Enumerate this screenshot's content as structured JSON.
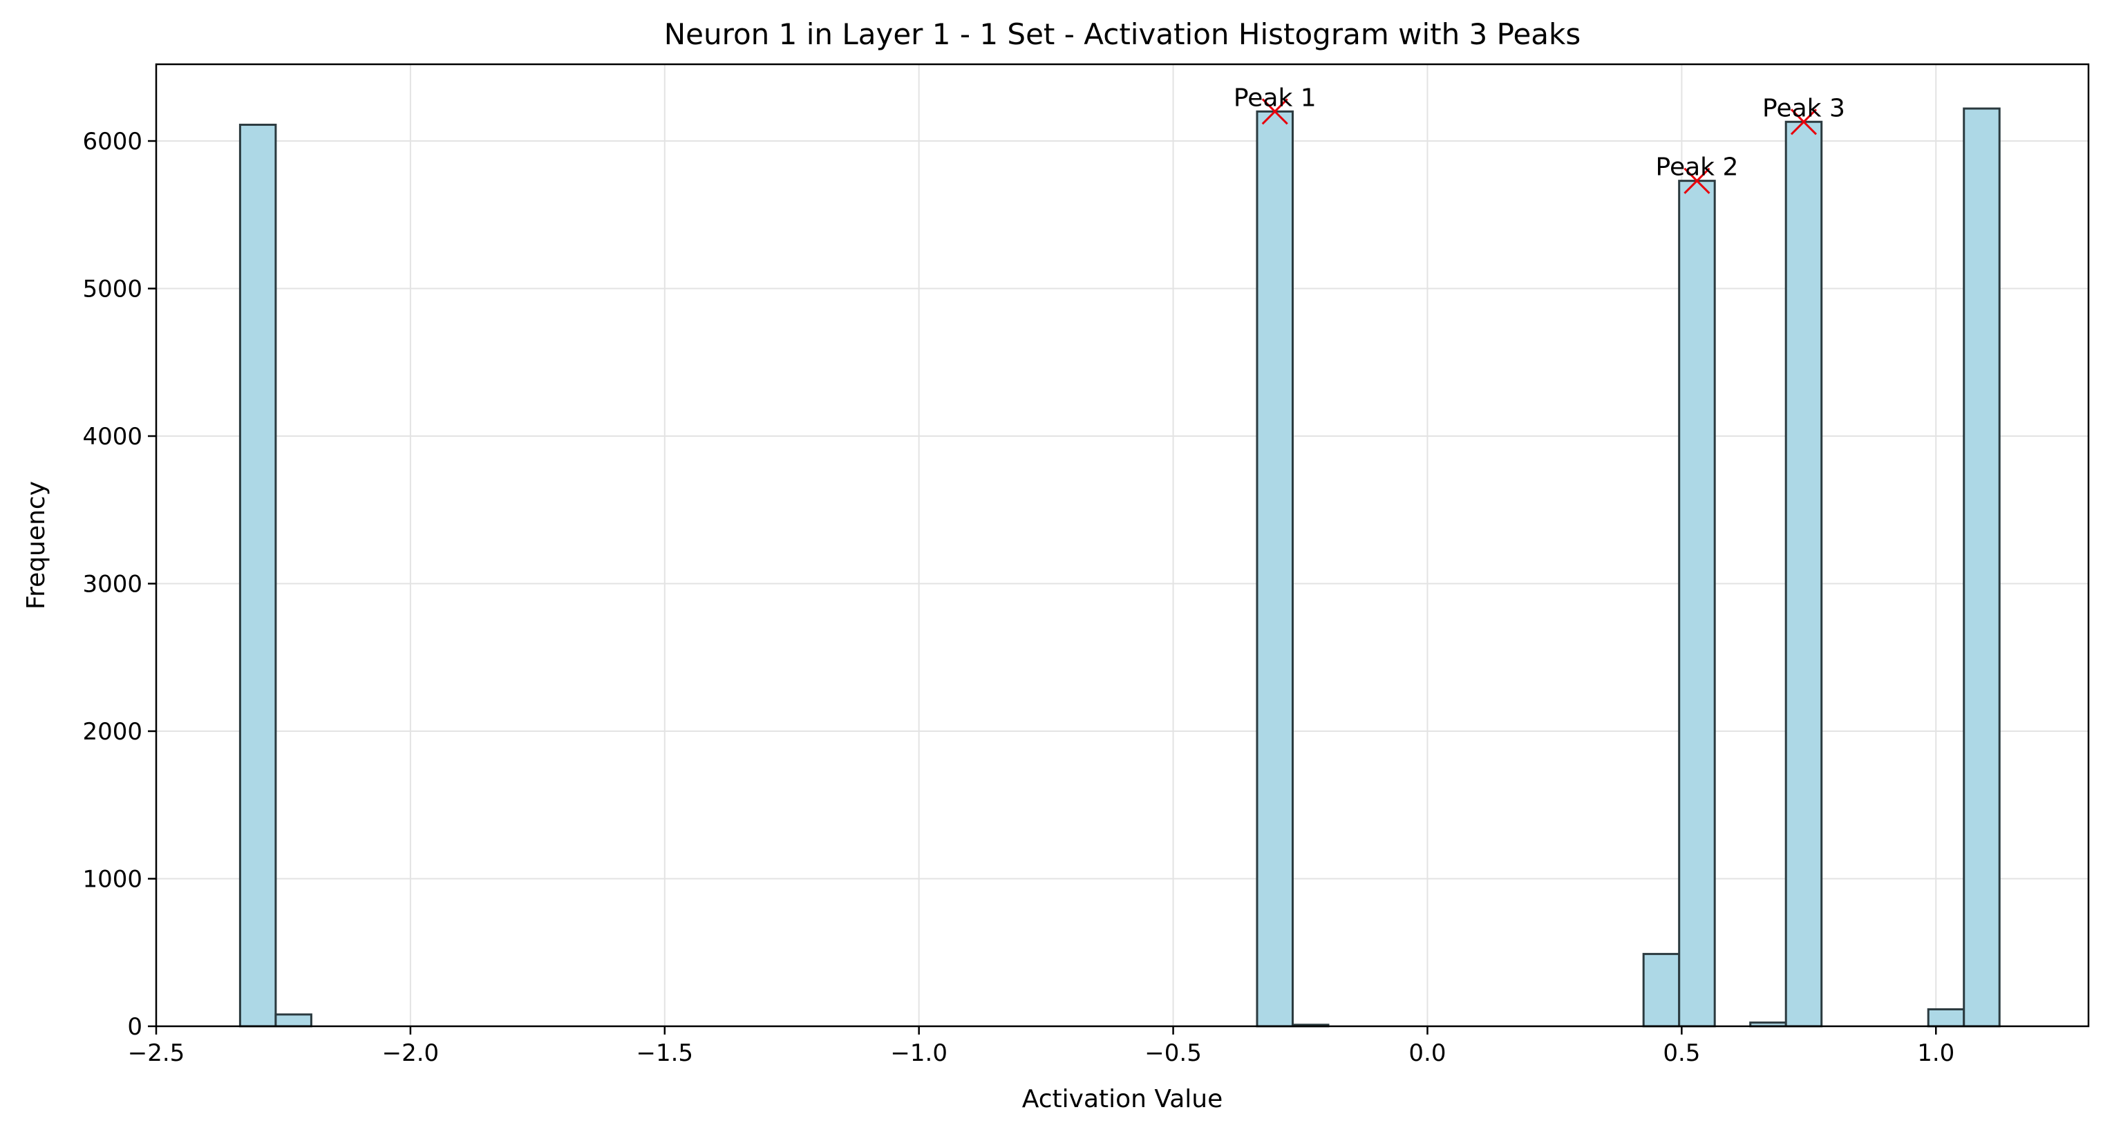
{
  "chart_data": {
    "type": "bar",
    "title": "Neuron 1 in Layer 1 - 1 Set - Activation Histogram with 3 Peaks",
    "xlabel": "Activation Value",
    "ylabel": "Frequency",
    "xlim": [
      -2.5,
      1.3
    ],
    "ylim": [
      0,
      6520
    ],
    "xticks": [
      -2.5,
      -2.0,
      -1.5,
      -1.0,
      -0.5,
      0.0,
      0.5,
      1.0
    ],
    "xtick_labels": [
      "−2.5",
      "−2.0",
      "−1.5",
      "−1.0",
      "−0.5",
      "0.0",
      "0.5",
      "1.0"
    ],
    "yticks": [
      0,
      1000,
      2000,
      3000,
      4000,
      5000,
      6000
    ],
    "ytick_labels": [
      "0",
      "1000",
      "2000",
      "3000",
      "4000",
      "5000",
      "6000"
    ],
    "grid": true,
    "bar_color": "#add8e6",
    "edge_color": "#2b3a3f",
    "marker_color": "#e8000b",
    "bins": [
      {
        "x0": -2.335,
        "x1": -2.265,
        "value": 6110
      },
      {
        "x0": -2.265,
        "x1": -2.195,
        "value": 80
      },
      {
        "x0": -0.335,
        "x1": -0.265,
        "value": 6200
      },
      {
        "x0": -0.265,
        "x1": -0.195,
        "value": 10
      },
      {
        "x0": 0.425,
        "x1": 0.495,
        "value": 490
      },
      {
        "x0": 0.495,
        "x1": 0.565,
        "value": 5730
      },
      {
        "x0": 0.635,
        "x1": 0.705,
        "value": 25
      },
      {
        "x0": 0.705,
        "x1": 0.775,
        "value": 6130
      },
      {
        "x0": 0.985,
        "x1": 1.055,
        "value": 115
      },
      {
        "x0": 1.055,
        "x1": 1.125,
        "value": 6220
      }
    ],
    "peaks": [
      {
        "label": "Peak 1",
        "x": -0.3,
        "y": 6200
      },
      {
        "label": "Peak 2",
        "x": 0.53,
        "y": 5730
      },
      {
        "label": "Peak 3",
        "x": 0.74,
        "y": 6130
      }
    ]
  }
}
